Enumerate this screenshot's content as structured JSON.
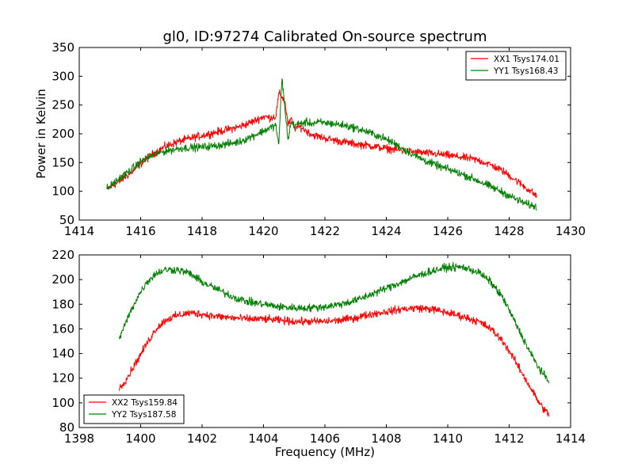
{
  "chart_data": [
    {
      "type": "line",
      "title": "gl0, ID:97274 Calibrated On-source spectrum",
      "xlabel": "",
      "ylabel": "Power in Kelvin",
      "xlim": [
        1414,
        1430
      ],
      "ylim": [
        50,
        350
      ],
      "xticks": [
        1414,
        1416,
        1418,
        1420,
        1422,
        1424,
        1426,
        1428,
        1430
      ],
      "yticks": [
        50,
        100,
        150,
        200,
        250,
        300,
        350
      ],
      "grid": false,
      "legend_position": "top-right",
      "series": [
        {
          "name": "XX1 Tsys174.01",
          "color": "#ff0000",
          "x": [
            1414.9,
            1415.3,
            1415.7,
            1416.0,
            1416.4,
            1416.8,
            1417.2,
            1417.6,
            1418.0,
            1418.4,
            1418.8,
            1419.2,
            1419.6,
            1420.0,
            1420.2,
            1420.4,
            1420.5,
            1420.6,
            1420.7,
            1420.8,
            1420.9,
            1421.0,
            1421.2,
            1421.4,
            1421.6,
            1421.8,
            1422.2,
            1422.6,
            1423.0,
            1423.4,
            1423.8,
            1424.2,
            1424.6,
            1425.0,
            1425.4,
            1425.8,
            1426.2,
            1426.6,
            1427.0,
            1427.4,
            1427.8,
            1428.2,
            1428.6,
            1428.9
          ],
          "y": [
            103,
            117,
            133,
            148,
            165,
            178,
            186,
            192,
            197,
            202,
            207,
            212,
            220,
            230,
            228,
            230,
            270,
            265,
            255,
            215,
            225,
            210,
            212,
            205,
            198,
            195,
            190,
            186,
            182,
            180,
            176,
            173,
            170,
            168,
            166,
            164,
            161,
            158,
            154,
            146,
            135,
            120,
            104,
            92
          ]
        },
        {
          "name": "YY1 Tsys168.43",
          "color": "#008000",
          "x": [
            1414.9,
            1415.3,
            1415.7,
            1416.0,
            1416.4,
            1416.8,
            1417.2,
            1417.6,
            1418.0,
            1418.4,
            1418.8,
            1419.2,
            1419.6,
            1420.0,
            1420.2,
            1420.4,
            1420.5,
            1420.6,
            1420.7,
            1420.8,
            1420.9,
            1421.0,
            1421.2,
            1421.4,
            1421.6,
            1421.8,
            1422.2,
            1422.6,
            1423.0,
            1423.4,
            1423.8,
            1424.2,
            1424.6,
            1425.0,
            1425.4,
            1425.8,
            1426.2,
            1426.6,
            1427.0,
            1427.4,
            1427.8,
            1428.2,
            1428.6,
            1428.9
          ],
          "y": [
            105,
            122,
            138,
            152,
            163,
            170,
            174,
            176,
            177,
            179,
            182,
            186,
            195,
            205,
            210,
            215,
            180,
            300,
            240,
            190,
            220,
            215,
            218,
            220,
            218,
            220,
            218,
            215,
            210,
            203,
            195,
            185,
            172,
            160,
            150,
            142,
            135,
            127,
            118,
            108,
            98,
            87,
            77,
            73
          ]
        }
      ]
    },
    {
      "type": "line",
      "title": "",
      "xlabel": "Frequency (MHz)",
      "ylabel": "",
      "xlim": [
        1398,
        1414
      ],
      "ylim": [
        80,
        220
      ],
      "xticks": [
        1398,
        1400,
        1402,
        1404,
        1406,
        1408,
        1410,
        1412,
        1414
      ],
      "yticks": [
        80,
        100,
        120,
        140,
        160,
        180,
        200,
        220
      ],
      "grid": false,
      "legend_position": "bottom-left",
      "series": [
        {
          "name": "XX2 Tsys159.84",
          "color": "#ff0000",
          "x": [
            1399.3,
            1399.6,
            1399.9,
            1400.2,
            1400.5,
            1400.8,
            1401.2,
            1401.6,
            1402.0,
            1402.5,
            1403.0,
            1403.5,
            1404.0,
            1404.5,
            1405.0,
            1405.5,
            1406.0,
            1406.5,
            1407.0,
            1407.5,
            1408.0,
            1408.5,
            1409.0,
            1409.5,
            1410.0,
            1410.5,
            1411.0,
            1411.4,
            1411.8,
            1412.1,
            1412.4,
            1412.7,
            1413.0,
            1413.3
          ],
          "y": [
            111,
            122,
            135,
            148,
            160,
            167,
            171,
            173,
            172,
            170,
            169,
            168,
            168,
            167,
            166,
            166,
            166,
            167,
            169,
            172,
            174,
            176,
            177,
            176,
            173,
            170,
            166,
            160,
            150,
            138,
            125,
            112,
            99,
            90
          ]
        },
        {
          "name": "YY2 Tsys187.58",
          "color": "#008000",
          "x": [
            1399.3,
            1399.6,
            1399.9,
            1400.2,
            1400.5,
            1400.8,
            1401.2,
            1401.6,
            1402.0,
            1402.5,
            1403.0,
            1403.5,
            1404.0,
            1404.5,
            1405.0,
            1405.5,
            1406.0,
            1406.5,
            1407.0,
            1407.5,
            1408.0,
            1408.5,
            1409.0,
            1409.5,
            1410.0,
            1410.5,
            1411.0,
            1411.4,
            1411.8,
            1412.1,
            1412.4,
            1412.7,
            1413.0,
            1413.3
          ],
          "y": [
            152,
            170,
            186,
            198,
            205,
            208,
            208,
            205,
            198,
            192,
            186,
            182,
            180,
            178,
            177,
            177,
            178,
            180,
            183,
            188,
            193,
            198,
            203,
            207,
            210,
            210,
            206,
            198,
            185,
            170,
            155,
            140,
            127,
            117
          ]
        }
      ]
    }
  ]
}
